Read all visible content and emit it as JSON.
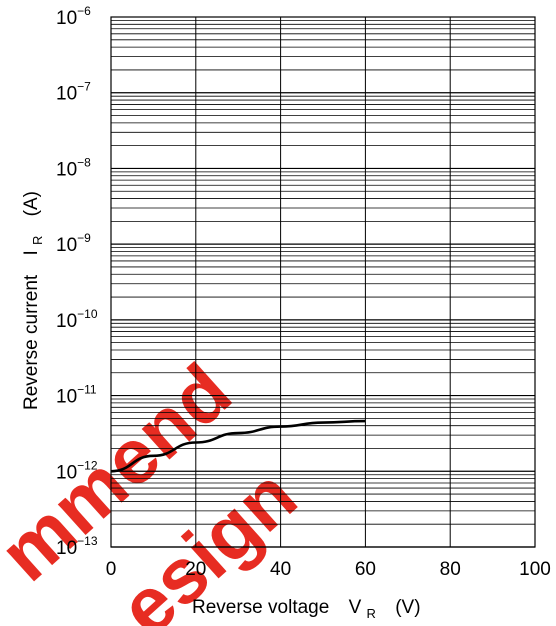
{
  "chart_data": {
    "type": "line",
    "x_ticks": [
      "0",
      "20",
      "40",
      "60",
      "80",
      "100"
    ],
    "y_ticks": [
      {
        "base": "10",
        "exp": "−6"
      },
      {
        "base": "10",
        "exp": "−7"
      },
      {
        "base": "10",
        "exp": "−8"
      },
      {
        "base": "10",
        "exp": "−9"
      },
      {
        "base": "10",
        "exp": "−10"
      },
      {
        "base": "10",
        "exp": "−11"
      },
      {
        "base": "10",
        "exp": "−12"
      },
      {
        "base": "10",
        "exp": "−13"
      }
    ],
    "xlim": [
      0,
      100
    ],
    "ylim": [
      1e-13,
      1e-06
    ],
    "y_scale": "log",
    "grid": true,
    "xlabel": {
      "main": "Reverse voltage",
      "symbol": "V",
      "subscript": "R",
      "unit": "(V)"
    },
    "ylabel": {
      "main": "Reverse current",
      "symbol": "I",
      "subscript": "R",
      "unit": "(A)"
    },
    "series": [
      {
        "x": [
          0,
          10,
          20,
          30,
          40,
          50,
          60
        ],
        "y": [
          1e-12,
          1.6e-12,
          2.4e-12,
          3.2e-12,
          3.9e-12,
          4.4e-12,
          4.6e-12
        ]
      }
    ]
  },
  "watermark": {
    "line1": "mmend",
    "line2": "esign",
    "color": "#e62117"
  }
}
